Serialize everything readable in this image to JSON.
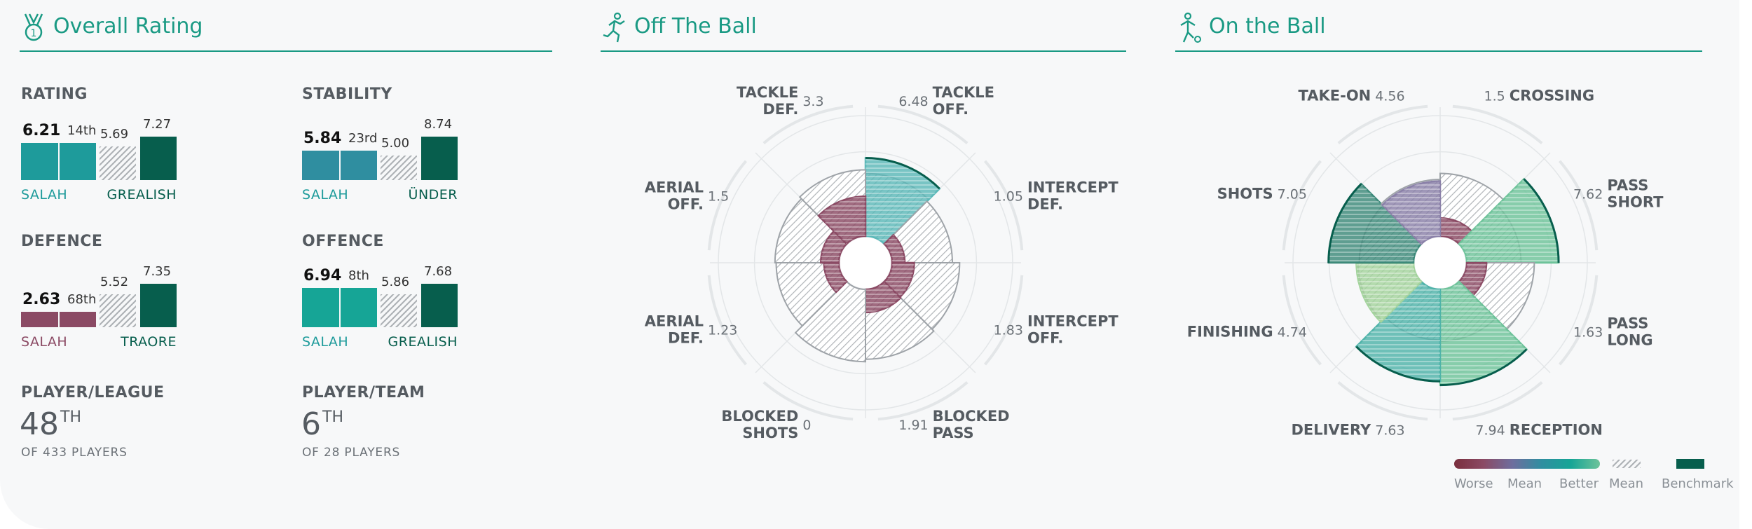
{
  "sections": {
    "overall": "Overall Rating",
    "off_ball": "Off The Ball",
    "on_ball": "On the Ball"
  },
  "overall": {
    "rating": {
      "label": "RATING",
      "value": "6.21",
      "rank": "14th",
      "mean": "5.69",
      "bench": "7.27",
      "player": "SALAH",
      "bench_player": "GREALISH",
      "value_frac": 0.85,
      "mean_frac": 0.78,
      "bench_frac": 1.0,
      "color": "#1e9b9b"
    },
    "stability": {
      "label": "STABILITY",
      "value": "5.84",
      "rank": "23rd",
      "mean": "5.00",
      "bench": "8.74",
      "player": "SALAH",
      "bench_player": "ÜNDER",
      "value_frac": 0.67,
      "mean_frac": 0.57,
      "bench_frac": 1.0,
      "color": "#2f8ea0"
    },
    "defence": {
      "label": "DEFENCE",
      "value": "2.63",
      "rank": "68th",
      "mean": "5.52",
      "bench": "7.35",
      "player": "SALAH",
      "bench_player": "TRAORE",
      "value_frac": 0.36,
      "mean_frac": 0.75,
      "bench_frac": 1.0,
      "color": "#8b4a64"
    },
    "offence": {
      "label": "OFFENCE",
      "value": "6.94",
      "rank": "8th",
      "mean": "5.86",
      "bench": "7.68",
      "player": "SALAH",
      "bench_player": "GREALISH",
      "value_frac": 0.9,
      "mean_frac": 0.76,
      "bench_frac": 1.0,
      "color": "#16a596"
    },
    "player_league": {
      "label": "PLAYER/LEAGUE",
      "rank_num": "48",
      "rank_suffix": "TH",
      "sub": "OF 433 PLAYERS"
    },
    "player_team": {
      "label": "PLAYER/TEAM",
      "rank_num": "6",
      "rank_suffix": "TH",
      "sub": "OF 28 PLAYERS"
    }
  },
  "colors": {
    "accent": "#1a9a84",
    "benchmark": "#075e4d",
    "player_label_teal": "#1e9b9b",
    "player_label_bad": "#8b4a64"
  },
  "chart_data": [
    {
      "type": "polar-area",
      "name": "Off The Ball",
      "segments": [
        {
          "label": [
            "TACKLE",
            "OFF."
          ],
          "value": 6.48,
          "display": "6.48",
          "color": "#5bb8b8"
        },
        {
          "label": [
            "INTERCEPT",
            "DEF."
          ],
          "value": 1.05,
          "display": "1.05",
          "color": "#8b4a64"
        },
        {
          "label": [
            "INTERCEPT",
            "OFF."
          ],
          "value": 1.83,
          "display": "1.83",
          "color": "#8b4a64"
        },
        {
          "label": [
            "BLOCKED",
            "PASS"
          ],
          "value": 1.91,
          "display": "1.91",
          "color": "#8b4a64"
        },
        {
          "label": [
            "BLOCKED",
            "SHOTS"
          ],
          "value": 0,
          "display": "0",
          "color": "#8b4a64"
        },
        {
          "label": [
            "AERIAL",
            "DEF."
          ],
          "value": 1.23,
          "display": "1.23",
          "color": "#8b4a64"
        },
        {
          "label": [
            "AERIAL",
            "OFF."
          ],
          "value": 1.5,
          "display": "1.5",
          "color": "#8b4a64"
        },
        {
          "label": [
            "TACKLE",
            "DEF."
          ],
          "value": 3.3,
          "display": "3.3",
          "color": "#8b4a64"
        }
      ],
      "mean": [
        5.2,
        5.0,
        5.6,
        5.8,
        6.0,
        5.2,
        5.3,
        5.5
      ],
      "benchmark": [
        6.48,
        null,
        null,
        null,
        null,
        null,
        null,
        null
      ]
    },
    {
      "type": "polar-area",
      "name": "On the Ball",
      "segments": [
        {
          "label": [
            "CROSSING"
          ],
          "value": 1.5,
          "display": "1.5",
          "color": "#8b4a64"
        },
        {
          "label": [
            "PASS",
            "SHORT"
          ],
          "value": 7.62,
          "display": "7.62",
          "color": "#6ec39a"
        },
        {
          "label": [
            "PASS",
            "LONG"
          ],
          "value": 1.63,
          "display": "1.63",
          "color": "#8b4a64"
        },
        {
          "label": [
            "RECEPTION"
          ],
          "value": 7.94,
          "display": "7.94",
          "color": "#6ec39a"
        },
        {
          "label": [
            "DELIVERY"
          ],
          "value": 7.63,
          "display": "7.63",
          "color": "#4fb3a9"
        },
        {
          "label": [
            "FINISHING"
          ],
          "value": 4.74,
          "display": "4.74",
          "color": "#a3d39c"
        },
        {
          "label": [
            "SHOTS"
          ],
          "value": 7.05,
          "display": "7.05",
          "color": "#3d8a7a"
        },
        {
          "label": [
            "TAKE-ON"
          ],
          "value": 4.56,
          "display": "4.56",
          "color": "#8a80a8"
        }
      ],
      "mean": [
        5.2,
        4.5,
        5.6,
        4.3,
        4.2,
        4.6,
        4.5,
        4.7
      ],
      "benchmark": [
        null,
        7.62,
        null,
        7.94,
        7.63,
        null,
        7.05,
        null
      ]
    }
  ],
  "legend": {
    "worse": "Worse",
    "mean": "Mean",
    "better": "Better",
    "mean2": "Mean",
    "benchmark": "Benchmark"
  }
}
